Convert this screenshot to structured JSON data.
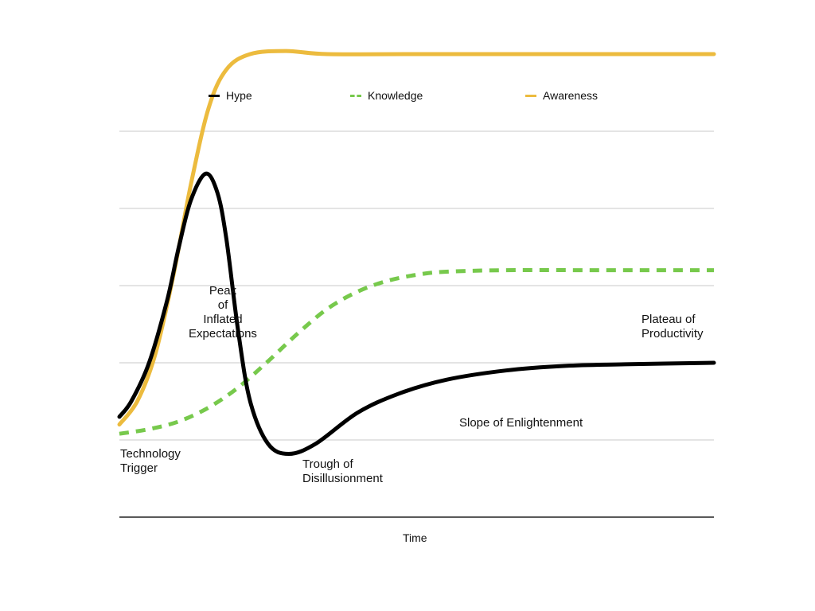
{
  "chart_data": {
    "type": "line",
    "title": "",
    "xlabel": "Time",
    "ylabel": "",
    "grid": true,
    "legend": "top",
    "series": [
      {
        "name": "Hype",
        "color": "#000000",
        "style": "solid",
        "points": [
          [
            0.0,
            1.3
          ],
          [
            0.02,
            1.5
          ],
          [
            0.05,
            2.0
          ],
          [
            0.08,
            2.8
          ],
          [
            0.1,
            3.5
          ],
          [
            0.12,
            4.1
          ],
          [
            0.145,
            4.45
          ],
          [
            0.165,
            4.2
          ],
          [
            0.18,
            3.6
          ],
          [
            0.2,
            2.4
          ],
          [
            0.22,
            1.5
          ],
          [
            0.25,
            0.95
          ],
          [
            0.285,
            0.82
          ],
          [
            0.33,
            0.95
          ],
          [
            0.4,
            1.35
          ],
          [
            0.47,
            1.6
          ],
          [
            0.55,
            1.78
          ],
          [
            0.65,
            1.9
          ],
          [
            0.75,
            1.96
          ],
          [
            0.85,
            1.98
          ],
          [
            1.0,
            2.0
          ]
        ]
      },
      {
        "name": "Knowledge",
        "color": "#77c94c",
        "style": "dashed",
        "points": [
          [
            0.0,
            1.08
          ],
          [
            0.05,
            1.14
          ],
          [
            0.1,
            1.24
          ],
          [
            0.15,
            1.42
          ],
          [
            0.2,
            1.68
          ],
          [
            0.25,
            2.02
          ],
          [
            0.3,
            2.38
          ],
          [
            0.35,
            2.7
          ],
          [
            0.4,
            2.92
          ],
          [
            0.45,
            3.06
          ],
          [
            0.5,
            3.14
          ],
          [
            0.55,
            3.18
          ],
          [
            0.65,
            3.2
          ],
          [
            0.8,
            3.2
          ],
          [
            1.0,
            3.2
          ]
        ]
      },
      {
        "name": "Awareness",
        "color": "#ecbb3e",
        "style": "solid",
        "points": [
          [
            0.0,
            1.2
          ],
          [
            0.03,
            1.5
          ],
          [
            0.06,
            2.1
          ],
          [
            0.09,
            3.1
          ],
          [
            0.12,
            4.3
          ],
          [
            0.15,
            5.3
          ],
          [
            0.18,
            5.8
          ],
          [
            0.22,
            6.0
          ],
          [
            0.28,
            6.04
          ],
          [
            0.35,
            6.0
          ],
          [
            0.5,
            6.0
          ],
          [
            1.0,
            6.0
          ]
        ]
      }
    ],
    "annotations": [
      {
        "id": "trigger",
        "lines": [
          "Technology",
          "Trigger"
        ]
      },
      {
        "id": "peak",
        "lines": [
          "Peak",
          "of",
          "Inflated",
          "Expectations"
        ]
      },
      {
        "id": "trough",
        "lines": [
          "Trough of",
          "Disillusionment"
        ]
      },
      {
        "id": "slope",
        "lines": [
          "Slope of Enlightenment"
        ]
      },
      {
        "id": "plateau",
        "lines": [
          "Plateau of",
          "Productivity"
        ]
      }
    ]
  }
}
